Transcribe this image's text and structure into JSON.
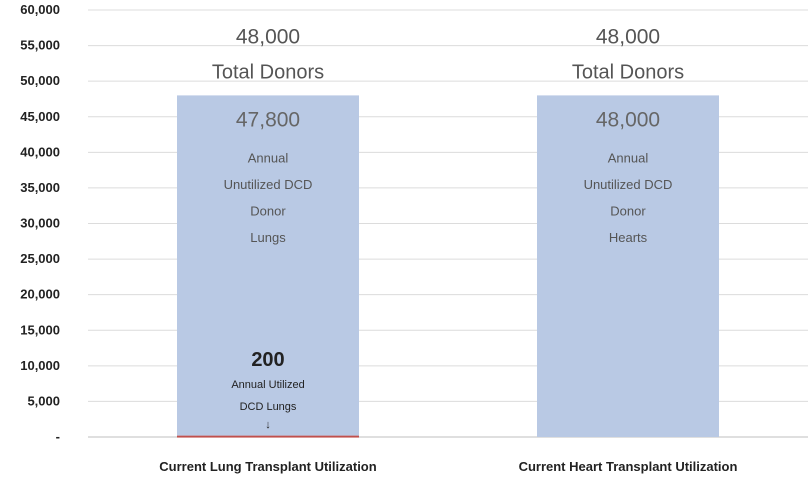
{
  "chart_data": {
    "type": "bar",
    "ylim": [
      0,
      60000
    ],
    "yticks": [
      {
        "value": 0,
        "label": "-"
      },
      {
        "value": 5000,
        "label": "5,000"
      },
      {
        "value": 10000,
        "label": "10,000"
      },
      {
        "value": 15000,
        "label": "15,000"
      },
      {
        "value": 20000,
        "label": "20,000"
      },
      {
        "value": 25000,
        "label": "25,000"
      },
      {
        "value": 30000,
        "label": "30,000"
      },
      {
        "value": 35000,
        "label": "35,000"
      },
      {
        "value": 40000,
        "label": "40,000"
      },
      {
        "value": 45000,
        "label": "45,000"
      },
      {
        "value": 50000,
        "label": "50,000"
      },
      {
        "value": 55000,
        "label": "55,000"
      },
      {
        "value": 60000,
        "label": "60,000"
      }
    ],
    "grid": true,
    "categories": [
      "Current Lung Transplant Utilization",
      "Current Heart Transplant Utilization"
    ],
    "series": [
      {
        "values": [
          200,
          0
        ],
        "color": "#c0504d"
      },
      {
        "values": [
          47800,
          48000
        ],
        "color": "#b9c9e4"
      }
    ],
    "annotations": [
      {
        "total_value": "48,000",
        "total_label": "Total Donors",
        "unutilized_value": "47,800",
        "unutilized_lines": [
          "Annual",
          "Unutilized DCD",
          "Donor",
          "Lungs"
        ],
        "utilized_value": "200",
        "utilized_lines": [
          "Annual Utilized",
          "DCD Lungs"
        ],
        "arrow": "↓"
      },
      {
        "total_value": "48,000",
        "total_label": "Total Donors",
        "unutilized_value": "48,000",
        "unutilized_lines": [
          "Annual",
          "Unutilized DCD",
          "Donor",
          "Hearts"
        ]
      }
    ]
  }
}
